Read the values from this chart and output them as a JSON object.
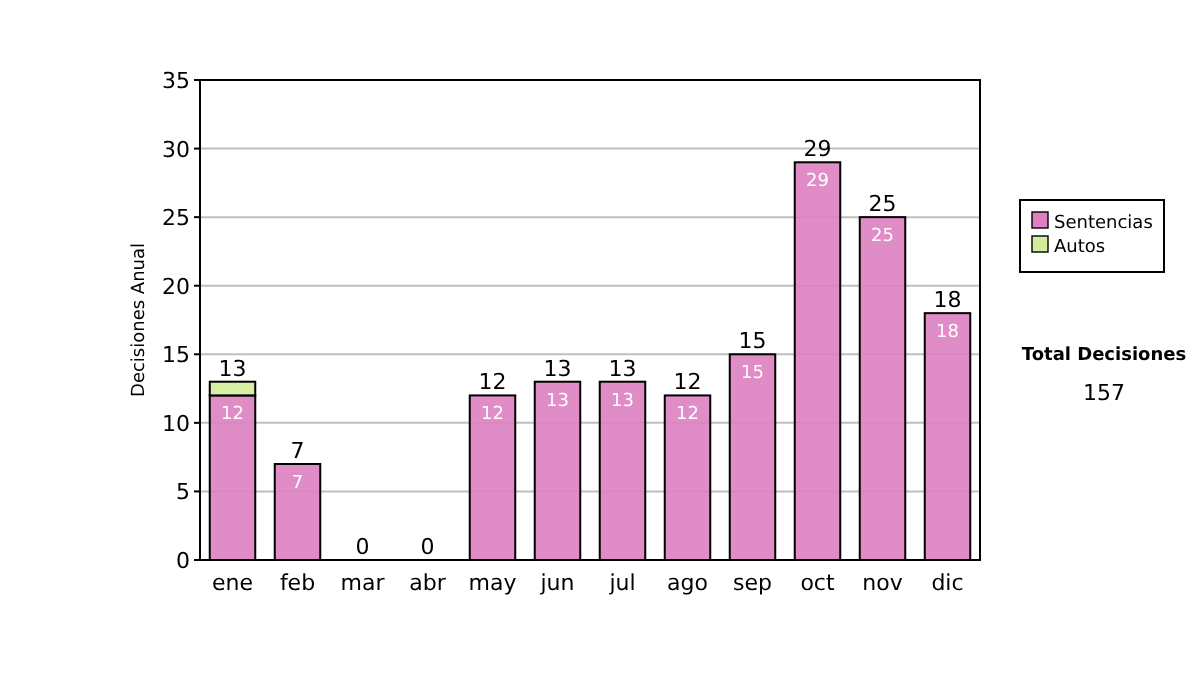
{
  "chart_data": {
    "type": "bar",
    "stacked": true,
    "ylabel": "Decisiones Anual",
    "categories": [
      "ene",
      "feb",
      "mar",
      "abr",
      "may",
      "jun",
      "jul",
      "ago",
      "sep",
      "oct",
      "nov",
      "dic"
    ],
    "series": [
      {
        "name": "Sentencias",
        "color": "#dd7fc0",
        "values": [
          12,
          7,
          0,
          0,
          12,
          13,
          13,
          12,
          15,
          29,
          25,
          18
        ],
        "value_labels": [
          "12",
          "7",
          null,
          null,
          "12",
          "13",
          "13",
          "12",
          "15",
          "29",
          "25",
          "18"
        ]
      },
      {
        "name": "Autos",
        "color": "#d4eb9b",
        "values": [
          1,
          0,
          0,
          0,
          0,
          0,
          0,
          0,
          0,
          0,
          0,
          0
        ]
      }
    ],
    "totals": [
      "13",
      "7",
      "0",
      "0",
      "12",
      "13",
      "13",
      "12",
      "15",
      "29",
      "25",
      "18"
    ],
    "ylim": [
      0,
      35
    ],
    "yticks": [
      0,
      5,
      10,
      15,
      20,
      25,
      30,
      35
    ],
    "grid": "y",
    "legend": "right",
    "annotations": [
      "Total Decisiones",
      "157"
    ]
  }
}
